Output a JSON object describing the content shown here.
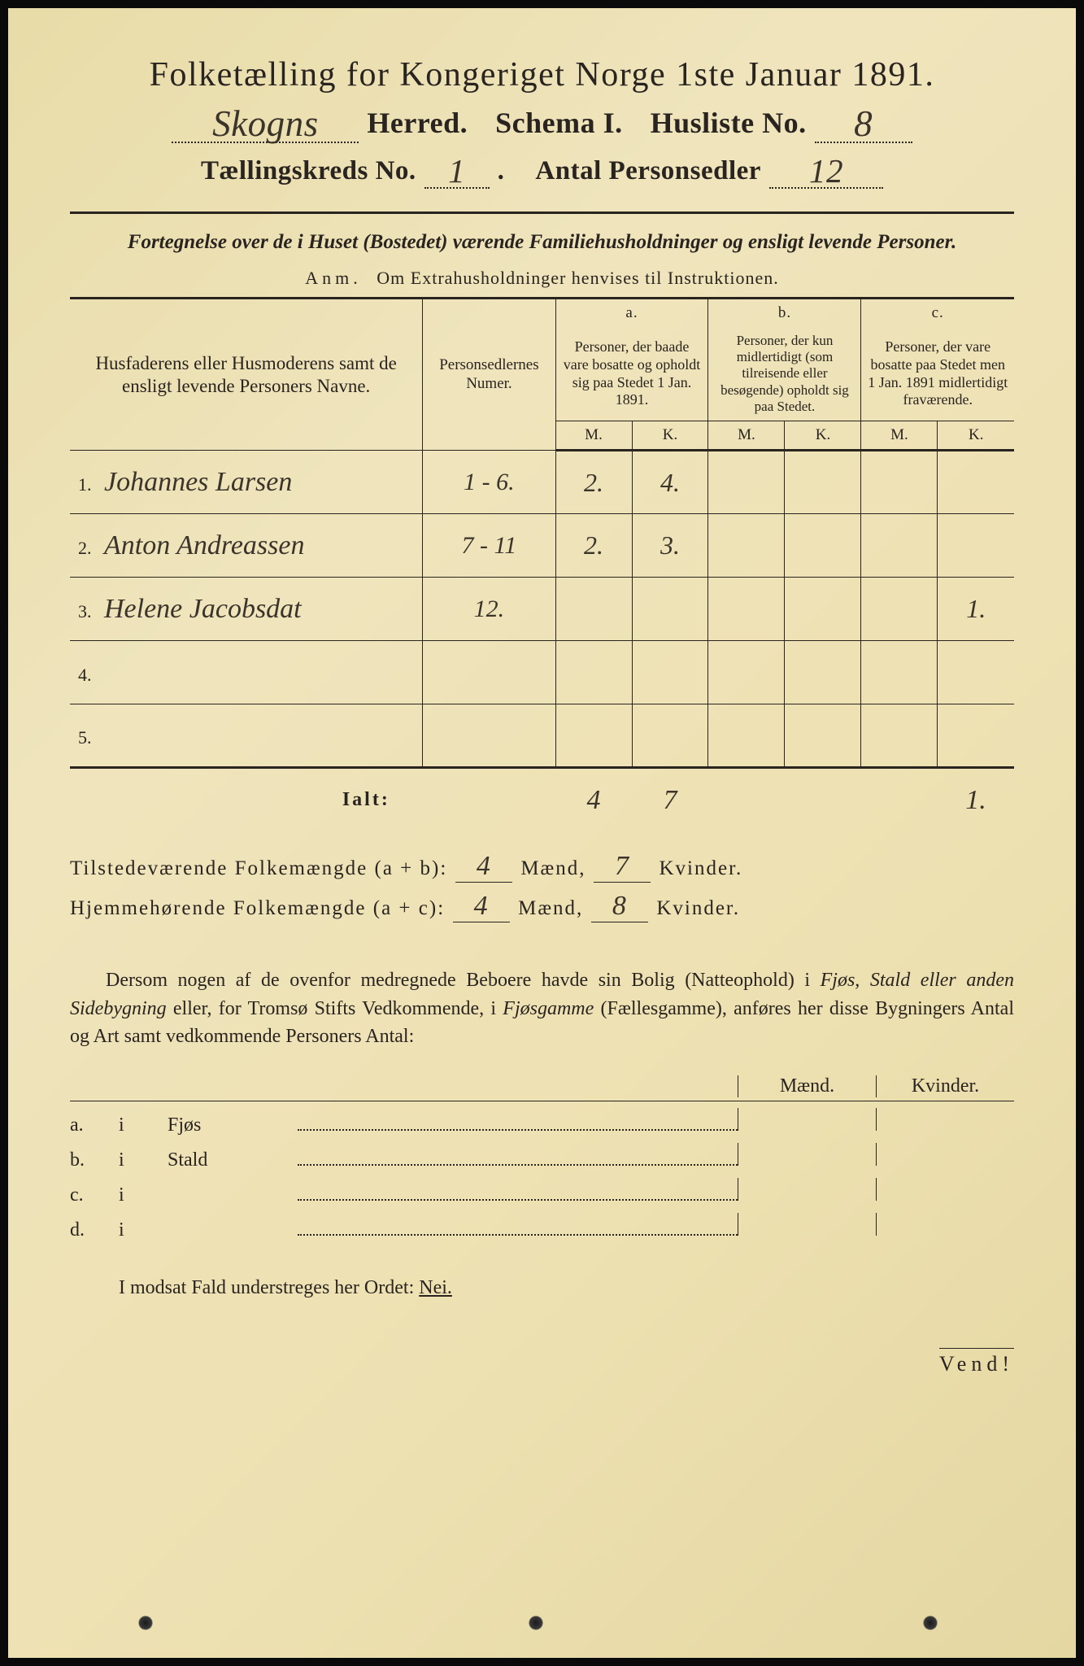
{
  "colors": {
    "paper": "#ede3bd",
    "ink": "#2a2420",
    "handwriting": "#3a342b",
    "frame": "#0a0a0a"
  },
  "header": {
    "main_title": "Folketælling for Kongeriget Norge 1ste Januar 1891.",
    "herred_value": "Skogns",
    "herred_label": "Herred.",
    "schema_label": "Schema I.",
    "husliste_label": "Husliste No.",
    "husliste_value": "8",
    "kreds_label": "Tællingskreds No.",
    "kreds_value": "1",
    "antal_label": "Antal Personsedler",
    "antal_value": "12"
  },
  "fortegnelse": "Fortegnelse over de i Huset (Bostedet) værende Familiehusholdninger og ensligt levende Personer.",
  "anm_lead": "Anm.",
  "anm_text": "Om Extrahusholdninger henvises til Instruktionen.",
  "table": {
    "col_names_header": "Husfaderens eller Husmoderens samt de ensligt levende Personers Navne.",
    "col_num_header": "Personsedlernes Numer.",
    "col_a_top": "a.",
    "col_a_text": "Personer, der baade vare bosatte og opholdt sig paa Stedet 1 Jan. 1891.",
    "col_b_top": "b.",
    "col_b_text": "Personer, der kun midlertidigt (som tilreisende eller besøgende) opholdt sig paa Stedet.",
    "col_c_top": "c.",
    "col_c_text": "Personer, der vare bosatte paa Stedet men 1 Jan. 1891 midlertidigt fraværende.",
    "mk_m": "M.",
    "mk_k": "K.",
    "rows": [
      {
        "n": "1.",
        "name": "Johannes Larsen",
        "num": "1 - 6.",
        "aM": "2.",
        "aK": "4.",
        "bM": "",
        "bK": "",
        "cM": "",
        "cK": ""
      },
      {
        "n": "2.",
        "name": "Anton Andreassen",
        "num": "7 - 11",
        "aM": "2.",
        "aK": "3.",
        "bM": "",
        "bK": "",
        "cM": "",
        "cK": ""
      },
      {
        "n": "3.",
        "name": "Helene Jacobsdat",
        "num": "12.",
        "aM": "",
        "aK": "",
        "bM": "",
        "bK": "",
        "cM": "",
        "cK": "1."
      },
      {
        "n": "4.",
        "name": "",
        "num": "",
        "aM": "",
        "aK": "",
        "bM": "",
        "bK": "",
        "cM": "",
        "cK": ""
      },
      {
        "n": "5.",
        "name": "",
        "num": "",
        "aM": "",
        "aK": "",
        "bM": "",
        "bK": "",
        "cM": "",
        "cK": ""
      }
    ],
    "ialt_label": "Ialt:",
    "ialt": {
      "aM": "4",
      "aK": "7",
      "bM": "",
      "bK": "",
      "cM": "",
      "cK": "1."
    }
  },
  "summary": {
    "line1_label": "Tilstedeværende Folkemængde (a + b):",
    "line1_m": "4",
    "line1_k": "7",
    "line2_label": "Hjemmehørende Folkemængde (a + c):",
    "line2_m": "4",
    "line2_k": "8",
    "maend": "Mænd,",
    "kvinder": "Kvinder."
  },
  "paragraph": {
    "p1": "Dersom nogen af de ovenfor medregnede Beboere havde sin Bolig (Natteophold) i ",
    "p2": "Fjøs, Stald eller anden Sidebygning",
    "p3": " eller, for Tromsø Stifts Vedkommende, i ",
    "p4": "Fjøsgamme",
    "p5": " (Fællesgamme), anføres her disse Bygningers Antal og Art samt vedkommende Personers Antal:"
  },
  "buildings": {
    "maend": "Mænd.",
    "kvinder": "Kvinder.",
    "rows": [
      {
        "letter": "a.",
        "i": "i",
        "name": "Fjøs"
      },
      {
        "letter": "b.",
        "i": "i",
        "name": "Stald"
      },
      {
        "letter": "c.",
        "i": "i",
        "name": ""
      },
      {
        "letter": "d.",
        "i": "i",
        "name": ""
      }
    ]
  },
  "nei_line_pre": "I modsat Fald understreges her Ordet: ",
  "nei": "Nei.",
  "vend": "Vend!"
}
